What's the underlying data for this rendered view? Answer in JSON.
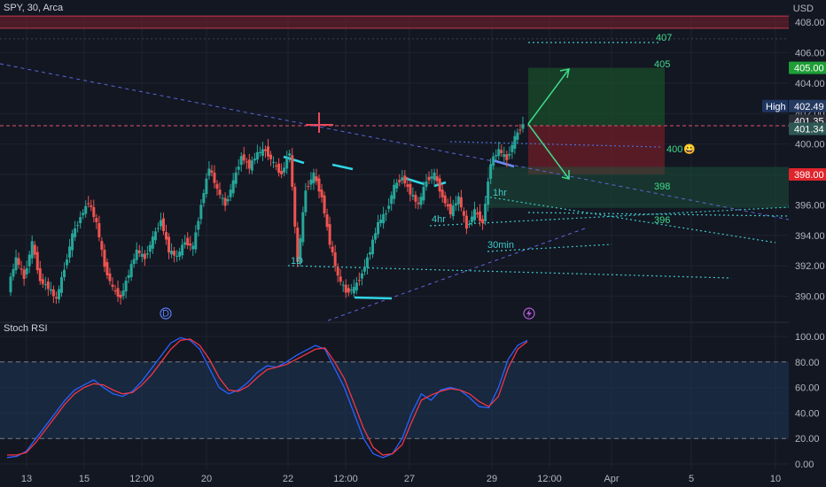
{
  "header": {
    "symbol_line": "SPY, 30, Arca",
    "currency": "USD"
  },
  "oscillator": {
    "title": "Stoch RSI"
  },
  "price_axis": {
    "ticks": [
      "408.00",
      "406.00",
      "404.00",
      "402.00",
      "400.00",
      "398.00",
      "396.00",
      "394.00",
      "392.00",
      "390.00"
    ],
    "badges": [
      {
        "label": "405.00",
        "price": 405.0,
        "color": "#1e9e36"
      },
      {
        "label": "402.49",
        "price": 402.49,
        "color": "#253a61",
        "tag": "High"
      },
      {
        "label": "401.35",
        "price": 401.35,
        "color": "#2a2e39"
      },
      {
        "label": "401.34",
        "price": 401.34,
        "color": "#2f5855"
      },
      {
        "label": "398.00",
        "price": 398.0,
        "color": "#e0242c"
      }
    ]
  },
  "osc_axis": {
    "ticks": [
      "100.00",
      "80.00",
      "60.00",
      "40.00",
      "20.00",
      "0.00"
    ]
  },
  "time_axis": {
    "ticks": [
      "13",
      "15",
      "12:00",
      "20",
      "22",
      "12:00",
      "27",
      "29",
      "12:00",
      "Apr",
      "5",
      "10"
    ]
  },
  "annotations": {
    "targets": [
      "407",
      "405",
      "400",
      "398",
      "396"
    ],
    "tf_labels": [
      "1hr",
      "4hr",
      "30min",
      "1D"
    ],
    "emoji": "😀",
    "marker_d": "D"
  },
  "chart_data": {
    "type": "candlestick",
    "title": "SPY, 30, Arca",
    "ylabel": "USD",
    "ylim": [
      389.2,
      408.6
    ],
    "levels": {
      "resistance_zone": [
        407.6,
        408.4
      ],
      "dashed": 401.2,
      "target_box": [
        398.0,
        405.0
      ],
      "support_box": [
        395.8,
        398.5
      ]
    },
    "price_path": [
      390.5,
      392.5,
      391.2,
      393.5,
      391.0,
      390.6,
      389.8,
      391.8,
      394.0,
      395.2,
      396.2,
      394.8,
      392.0,
      390.5,
      389.9,
      391.5,
      393.0,
      392.5,
      393.8,
      395.0,
      393.0,
      392.6,
      393.6,
      393.2,
      396.0,
      398.5,
      397.0,
      396.0,
      397.5,
      399.2,
      398.5,
      399.4,
      399.6,
      398.7,
      398.0,
      399.5,
      392.2,
      397.0,
      398.0,
      396.5,
      393.5,
      391.3,
      390.3,
      390.5,
      391.5,
      393.0,
      394.8,
      395.5,
      397.2,
      397.8,
      396.8,
      396.0,
      397.6,
      398.0,
      396.5,
      395.5,
      396.5,
      394.5,
      395.6,
      394.8,
      398.8,
      399.6,
      399.0,
      400.4,
      401.3
    ],
    "stoch_rsi": {
      "ylim": [
        0,
        100
      ],
      "band": [
        20,
        80
      ],
      "k": [
        5,
        6,
        10,
        20,
        30,
        40,
        50,
        58,
        62,
        66,
        60,
        55,
        53,
        57,
        65,
        75,
        85,
        95,
        99,
        97,
        90,
        75,
        60,
        55,
        58,
        64,
        72,
        77,
        76,
        80,
        85,
        89,
        93,
        90,
        75,
        60,
        40,
        20,
        8,
        5,
        8,
        20,
        40,
        55,
        50,
        58,
        60,
        58,
        52,
        45,
        44,
        60,
        82,
        93,
        97
      ],
      "d": [
        7,
        7,
        9,
        17,
        27,
        37,
        47,
        55,
        60,
        63,
        62,
        58,
        55,
        56,
        62,
        70,
        80,
        90,
        97,
        98,
        93,
        82,
        68,
        58,
        57,
        61,
        68,
        74,
        76,
        78,
        82,
        86,
        90,
        91,
        80,
        67,
        48,
        28,
        13,
        7,
        8,
        15,
        33,
        50,
        54,
        57,
        59,
        58,
        55,
        49,
        45,
        53,
        75,
        90,
        96
      ]
    }
  }
}
